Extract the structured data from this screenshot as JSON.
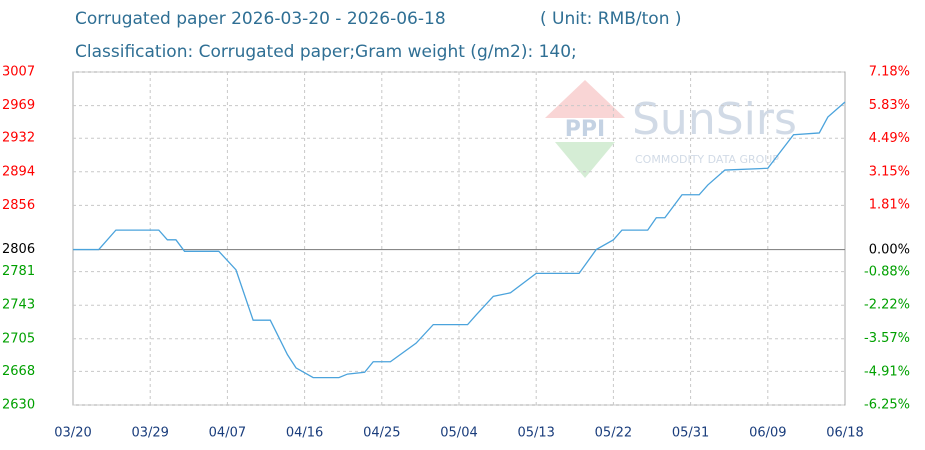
{
  "chart_data": {
    "type": "line",
    "title": "Corrugated paper 2026-03-20 - 2026-06-18",
    "unit": "( Unit: RMB/ton )",
    "subtitle": "Classification: Corrugated paper;Gram weight (g/m2): 140;",
    "watermark": {
      "logo": "PPI",
      "brand": "SunSirs",
      "tagline": "COMMODITY DATA GROUP"
    },
    "color": "#4ba3dc",
    "up_color": "#ff0000",
    "down_color": "#00a000",
    "reference": 2806,
    "grid": true,
    "x": [
      "03/20",
      "03/23",
      "03/25",
      "03/30",
      "03/31",
      "04/01",
      "04/02",
      "04/06",
      "04/08",
      "04/10",
      "04/12",
      "04/14",
      "04/15",
      "04/17",
      "04/20",
      "04/21",
      "04/23",
      "04/24",
      "04/26",
      "04/29",
      "05/01",
      "05/05",
      "05/06",
      "05/08",
      "05/10",
      "05/13",
      "05/18",
      "05/20",
      "05/22",
      "05/23",
      "05/26",
      "05/27",
      "05/28",
      "05/30",
      "06/01",
      "06/02",
      "06/04",
      "06/09",
      "06/12",
      "06/15",
      "06/16",
      "06/18"
    ],
    "values": [
      2806,
      2806,
      2828,
      2828,
      2817,
      2817,
      2804,
      2804,
      2783,
      2726,
      2726,
      2687,
      2672,
      2661,
      2661,
      2665,
      2667,
      2679,
      2679,
      2700,
      2721,
      2721,
      2732,
      2753,
      2757,
      2779,
      2779,
      2806,
      2817,
      2828,
      2828,
      2842,
      2842,
      2868,
      2868,
      2879,
      2896,
      2898,
      2936,
      2938,
      2956,
      2973
    ],
    "xlim": [
      "03/20",
      "06/18"
    ],
    "xticks": [
      "03/20",
      "03/29",
      "04/07",
      "04/16",
      "04/25",
      "05/04",
      "05/13",
      "05/22",
      "05/31",
      "06/09",
      "06/18"
    ],
    "ylim": [
      2630,
      3007
    ],
    "yticks": [
      3007,
      2969,
      2932,
      2894,
      2856,
      2806,
      2781,
      2743,
      2705,
      2668,
      2630
    ],
    "y2lim": [
      -6.25,
      7.18
    ],
    "y2ticks": [
      {
        "value": 7.18,
        "label": "7.18%"
      },
      {
        "value": 5.83,
        "label": "5.83%"
      },
      {
        "value": 4.49,
        "label": "4.49%"
      },
      {
        "value": 3.15,
        "label": "3.15%"
      },
      {
        "value": 1.81,
        "label": "1.81%"
      },
      {
        "value": 0,
        "label": "0.00%"
      },
      {
        "value": -0.88,
        "label": "-0.88%"
      },
      {
        "value": -2.22,
        "label": "-2.22%"
      },
      {
        "value": -3.57,
        "label": "-3.57%"
      },
      {
        "value": -4.91,
        "label": "-4.91%"
      },
      {
        "value": -6.25,
        "label": "-6.25%"
      }
    ]
  }
}
